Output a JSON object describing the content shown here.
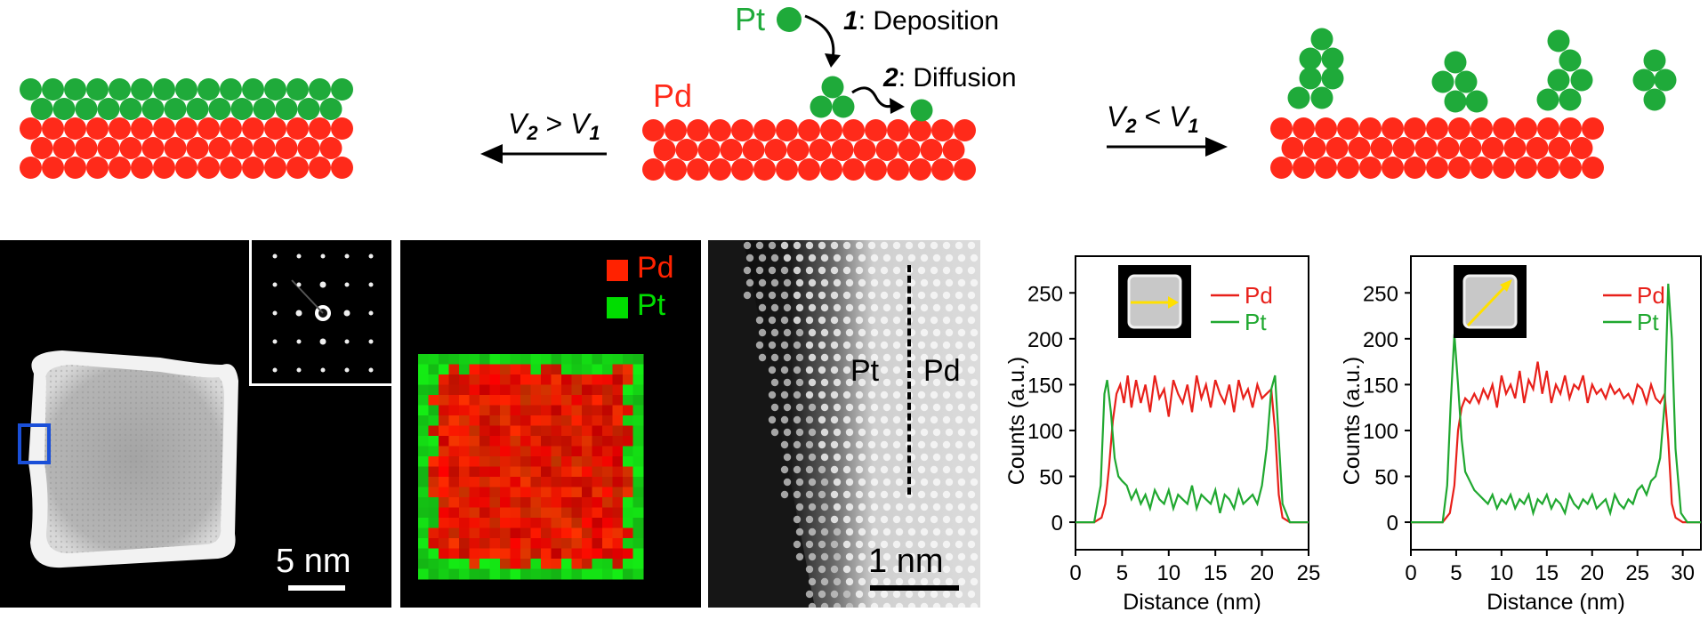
{
  "schematic": {
    "pt_label": "Pt",
    "pd_label": "Pd",
    "step1_num": "1",
    "step1_text": ": Deposition",
    "step2_num": "2",
    "step2_text": ": Diffusion",
    "left_arrow": {
      "v_a": "V",
      "sub_a": "2",
      "rel": " > ",
      "v_b": "V",
      "sub_b": "1"
    },
    "right_arrow": {
      "v_a": "V",
      "sub_a": "2",
      "rel": " < ",
      "v_b": "V",
      "sub_b": "1"
    }
  },
  "colors": {
    "pd": "#ff2a1a",
    "pt": "#1faa3a",
    "pd_map": "#ff2200",
    "pt_map": "#00dd00",
    "box": "#1a4fd8",
    "profile_arrow": "#ffe000"
  },
  "micrographs": {
    "haadf_scale": "5 nm",
    "map_legend_pd": "Pd",
    "map_legend_pt": "Pt",
    "hr_label_pt": "Pt",
    "hr_label_pd": "Pd",
    "hr_scale": "1 nm"
  },
  "chart_data": [
    {
      "type": "line",
      "xlabel": "Distance (nm)",
      "ylabel": "Counts (a.u.)",
      "xlim": [
        0,
        25
      ],
      "ylim": [
        -30,
        290
      ],
      "xticks": [
        0,
        5,
        10,
        15,
        20,
        25
      ],
      "yticks": [
        0,
        50,
        100,
        150,
        200,
        250
      ],
      "legend_position": "top-right",
      "inset_arrow": "horizontal",
      "series": [
        {
          "name": "Pd",
          "color": "#e8201a",
          "x": [
            0,
            2,
            2.8,
            3.2,
            3.6,
            4.0,
            4.4,
            4.8,
            5.2,
            5.6,
            6.0,
            6.5,
            7.0,
            7.5,
            8.0,
            8.5,
            9.0,
            9.5,
            10.0,
            10.5,
            11.0,
            11.5,
            12.0,
            12.5,
            13.0,
            13.5,
            14.0,
            14.5,
            15.0,
            15.5,
            16.0,
            16.5,
            17.0,
            17.5,
            18.0,
            18.5,
            19.0,
            19.5,
            20.0,
            20.5,
            21.0,
            21.4,
            21.8,
            22.2,
            23,
            25
          ],
          "y": [
            0,
            0,
            5,
            20,
            60,
            110,
            140,
            150,
            130,
            160,
            125,
            155,
            130,
            150,
            120,
            160,
            135,
            145,
            115,
            155,
            140,
            130,
            150,
            120,
            160,
            135,
            150,
            125,
            155,
            140,
            130,
            150,
            120,
            155,
            135,
            145,
            125,
            150,
            135,
            140,
            145,
            100,
            30,
            5,
            0,
            0
          ]
        },
        {
          "name": "Pt",
          "color": "#20a830",
          "x": [
            0,
            2,
            2.7,
            3.1,
            3.4,
            3.8,
            4.2,
            4.6,
            5.0,
            5.5,
            6.0,
            6.5,
            7.0,
            7.5,
            8.0,
            8.5,
            9.0,
            9.5,
            10.0,
            10.5,
            11.0,
            11.5,
            12.0,
            12.5,
            13.0,
            13.5,
            14.0,
            14.5,
            15.0,
            15.5,
            16.0,
            16.5,
            17.0,
            17.5,
            18.0,
            18.5,
            19.0,
            19.5,
            20.0,
            20.5,
            21.0,
            21.4,
            21.8,
            22.2,
            23,
            25
          ],
          "y": [
            0,
            0,
            40,
            140,
            155,
            120,
            70,
            50,
            45,
            40,
            25,
            35,
            20,
            30,
            15,
            35,
            25,
            20,
            35,
            15,
            30,
            25,
            20,
            40,
            15,
            30,
            25,
            20,
            35,
            10,
            30,
            25,
            15,
            35,
            20,
            25,
            30,
            20,
            40,
            80,
            145,
            160,
            90,
            20,
            0,
            0
          ]
        }
      ]
    },
    {
      "type": "line",
      "xlabel": "Distance (nm)",
      "ylabel": "Counts (a.u.)",
      "xlim": [
        0,
        32
      ],
      "ylim": [
        -30,
        290
      ],
      "xticks": [
        0,
        5,
        10,
        15,
        20,
        25,
        30
      ],
      "yticks": [
        0,
        50,
        100,
        150,
        200,
        250
      ],
      "legend_position": "top-right",
      "inset_arrow": "diagonal",
      "series": [
        {
          "name": "Pd",
          "color": "#e8201a",
          "x": [
            0,
            3.5,
            4.3,
            4.8,
            5.2,
            5.6,
            6.0,
            6.5,
            7.0,
            7.5,
            8.0,
            8.5,
            9.0,
            9.5,
            10.0,
            10.5,
            11.0,
            11.5,
            12.0,
            12.5,
            13.0,
            13.5,
            14.0,
            14.5,
            15.0,
            15.5,
            16.0,
            16.5,
            17.0,
            17.5,
            18.0,
            18.5,
            19.0,
            19.5,
            20.0,
            20.5,
            21.0,
            21.5,
            22.0,
            22.5,
            23.0,
            23.5,
            24.0,
            24.5,
            25.0,
            25.5,
            26.0,
            26.5,
            27.0,
            27.5,
            28.0,
            28.4,
            28.8,
            29.2,
            30,
            32
          ],
          "y": [
            0,
            0,
            10,
            40,
            100,
            125,
            135,
            130,
            140,
            130,
            145,
            135,
            150,
            125,
            160,
            140,
            150,
            135,
            165,
            130,
            155,
            145,
            175,
            140,
            165,
            130,
            150,
            140,
            160,
            135,
            150,
            145,
            160,
            130,
            150,
            140,
            145,
            135,
            150,
            140,
            145,
            135,
            140,
            130,
            150,
            145,
            130,
            150,
            135,
            130,
            140,
            90,
            20,
            5,
            0,
            0
          ]
        },
        {
          "name": "Pt",
          "color": "#20a830",
          "x": [
            0,
            3.5,
            4.0,
            4.4,
            4.8,
            5.2,
            5.6,
            6.0,
            6.5,
            7.0,
            7.5,
            8.0,
            8.5,
            9.0,
            9.5,
            10.0,
            10.5,
            11.0,
            11.5,
            12.0,
            12.5,
            13.0,
            13.5,
            14.0,
            14.5,
            15.0,
            15.5,
            16.0,
            16.5,
            17.0,
            17.5,
            18.0,
            18.5,
            19.0,
            19.5,
            20.0,
            20.5,
            21.0,
            21.5,
            22.0,
            22.5,
            23.0,
            23.5,
            24.0,
            24.5,
            25.0,
            25.5,
            26.0,
            26.5,
            27.0,
            27.5,
            28.0,
            28.4,
            28.8,
            29.2,
            29.8,
            30.5,
            32
          ],
          "y": [
            0,
            0,
            40,
            130,
            205,
            150,
            90,
            55,
            45,
            35,
            30,
            25,
            20,
            30,
            15,
            25,
            20,
            30,
            15,
            25,
            20,
            30,
            10,
            25,
            20,
            30,
            15,
            25,
            20,
            10,
            30,
            20,
            15,
            25,
            20,
            30,
            15,
            20,
            25,
            10,
            30,
            20,
            15,
            25,
            20,
            35,
            40,
            30,
            45,
            50,
            70,
            130,
            260,
            200,
            80,
            10,
            0,
            0
          ]
        }
      ]
    }
  ]
}
